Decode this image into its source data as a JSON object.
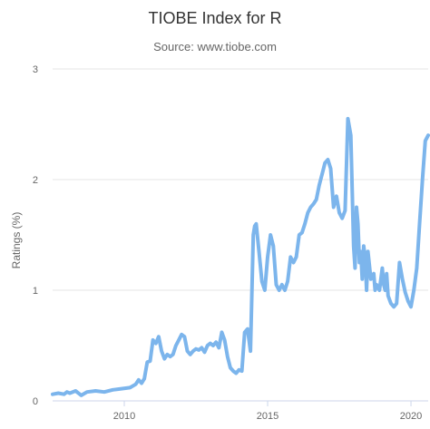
{
  "chart_data": {
    "type": "line",
    "title": "TIOBE Index for R",
    "subtitle": "Source: www.tiobe.com",
    "xlabel": "",
    "ylabel": "Ratings (%)",
    "xlim": [
      2007.5,
      2020.6
    ],
    "ylim": [
      0,
      3
    ],
    "xticks": [
      2010,
      2015,
      2020
    ],
    "yticks": [
      0,
      1,
      2,
      3
    ],
    "grid": "horizontal",
    "legend": "none",
    "series": [
      {
        "name": "",
        "color": "#7cb5ec",
        "x": [
          2007.5,
          2007.7,
          2007.9,
          2008.0,
          2008.1,
          2008.3,
          2008.5,
          2008.7,
          2009.0,
          2009.3,
          2009.6,
          2009.9,
          2010.2,
          2010.4,
          2010.5,
          2010.6,
          2010.7,
          2010.8,
          2010.9,
          2011.0,
          2011.1,
          2011.2,
          2011.3,
          2011.4,
          2011.5,
          2011.6,
          2011.7,
          2011.8,
          2011.9,
          2012.0,
          2012.1,
          2012.2,
          2012.3,
          2012.4,
          2012.5,
          2012.6,
          2012.7,
          2012.8,
          2012.9,
          2013.0,
          2013.1,
          2013.2,
          2013.3,
          2013.4,
          2013.5,
          2013.6,
          2013.7,
          2013.8,
          2013.9,
          2014.0,
          2014.1,
          2014.2,
          2014.3,
          2014.4,
          2014.5,
          2014.55,
          2014.6,
          2014.7,
          2014.8,
          2014.9,
          2015.0,
          2015.1,
          2015.2,
          2015.3,
          2015.4,
          2015.5,
          2015.6,
          2015.7,
          2015.8,
          2015.9,
          2016.0,
          2016.1,
          2016.2,
          2016.3,
          2016.4,
          2016.5,
          2016.6,
          2016.7,
          2016.8,
          2016.9,
          2017.0,
          2017.1,
          2017.2,
          2017.3,
          2017.4,
          2017.5,
          2017.6,
          2017.7,
          2017.8,
          2017.9,
          2018.0,
          2018.05,
          2018.1,
          2018.15,
          2018.2,
          2018.25,
          2018.3,
          2018.35,
          2018.4,
          2018.45,
          2018.5,
          2018.6,
          2018.7,
          2018.75,
          2018.8,
          2018.9,
          2019.0,
          2019.05,
          2019.1,
          2019.15,
          2019.2,
          2019.3,
          2019.4,
          2019.5,
          2019.6,
          2019.7,
          2019.8,
          2019.9,
          2020.0,
          2020.1,
          2020.2,
          2020.3,
          2020.4,
          2020.5,
          2020.6
        ],
        "y": [
          0.06,
          0.07,
          0.06,
          0.08,
          0.07,
          0.09,
          0.05,
          0.08,
          0.09,
          0.08,
          0.1,
          0.11,
          0.12,
          0.15,
          0.19,
          0.16,
          0.2,
          0.35,
          0.36,
          0.55,
          0.52,
          0.58,
          0.45,
          0.38,
          0.42,
          0.4,
          0.42,
          0.5,
          0.55,
          0.6,
          0.58,
          0.45,
          0.42,
          0.45,
          0.47,
          0.46,
          0.48,
          0.44,
          0.5,
          0.52,
          0.5,
          0.53,
          0.48,
          0.62,
          0.55,
          0.4,
          0.3,
          0.27,
          0.25,
          0.28,
          0.27,
          0.62,
          0.65,
          0.45,
          1.5,
          1.58,
          1.6,
          1.35,
          1.08,
          1.0,
          1.3,
          1.5,
          1.4,
          1.05,
          1.0,
          1.05,
          1.0,
          1.08,
          1.3,
          1.25,
          1.3,
          1.5,
          1.52,
          1.6,
          1.7,
          1.75,
          1.78,
          1.82,
          1.95,
          2.05,
          2.15,
          2.18,
          2.1,
          1.75,
          1.85,
          1.7,
          1.65,
          1.72,
          2.55,
          2.4,
          1.4,
          1.2,
          1.75,
          1.6,
          1.25,
          1.35,
          1.1,
          1.4,
          1.3,
          1.0,
          1.35,
          1.1,
          1.15,
          1.0,
          1.05,
          1.0,
          1.2,
          1.05,
          1.0,
          1.15,
          0.95,
          0.88,
          0.85,
          0.88,
          1.25,
          1.1,
          0.98,
          0.9,
          0.85,
          1.0,
          1.2,
          1.6,
          2.0,
          2.35,
          2.4
        ]
      }
    ]
  }
}
